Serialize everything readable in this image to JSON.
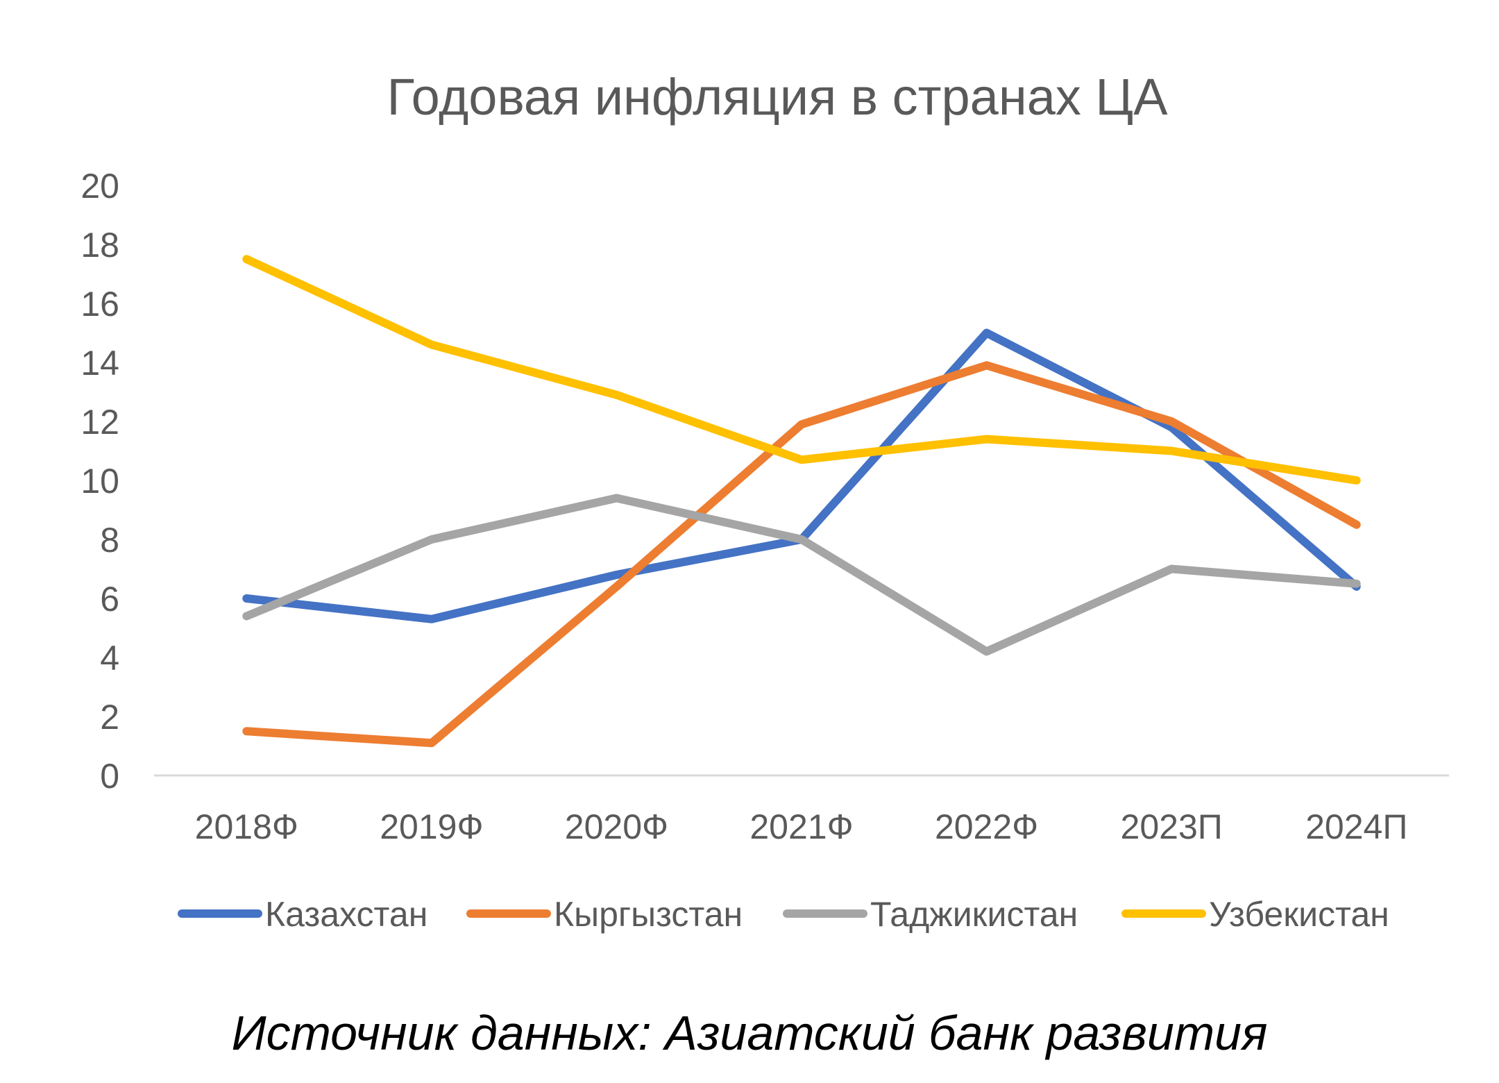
{
  "chart_data": {
    "type": "line",
    "title": "Годовая инфляция в странах ЦА",
    "xlabel": "",
    "ylabel": "",
    "categories": [
      "2018Ф",
      "2019Ф",
      "2020Ф",
      "2021Ф",
      "2022Ф",
      "2023П",
      "2024П"
    ],
    "ylim": [
      0,
      20
    ],
    "yticks": [
      0,
      2,
      4,
      6,
      8,
      10,
      12,
      14,
      16,
      18,
      20
    ],
    "grid": false,
    "legend_position": "bottom",
    "series": [
      {
        "name": "Казахстан",
        "color": "#4472C4",
        "values": [
          6.0,
          5.3,
          6.8,
          8.0,
          15.0,
          11.8,
          6.4
        ]
      },
      {
        "name": "Кыргызстан",
        "color": "#ED7D31",
        "values": [
          1.5,
          1.1,
          6.4,
          11.9,
          13.9,
          12.0,
          8.5
        ]
      },
      {
        "name": "Таджикистан",
        "color": "#A5A5A5",
        "values": [
          5.4,
          8.0,
          9.4,
          8.0,
          4.2,
          7.0,
          6.5
        ]
      },
      {
        "name": "Узбекистан",
        "color": "#FFC000",
        "values": [
          17.5,
          14.6,
          12.9,
          10.7,
          11.4,
          11.0,
          10.0
        ]
      }
    ]
  },
  "source_note": "Источник данных: Азиатский банк развития"
}
